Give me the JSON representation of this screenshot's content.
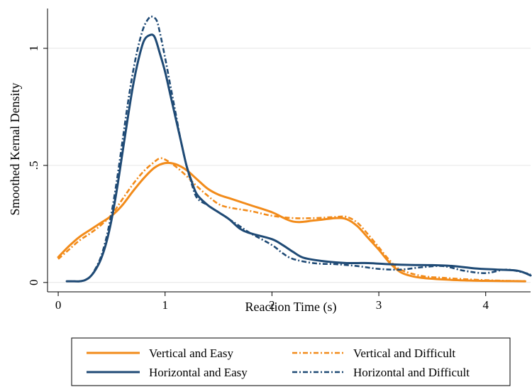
{
  "chart_data": {
    "type": "line",
    "xlabel": "Reaction Time (s)",
    "ylabel": "Smoothed Kernal Density",
    "xlim": [
      -0.1,
      4.42
    ],
    "ylim": [
      -0.04,
      1.17
    ],
    "xticks": [
      {
        "value": 0,
        "label": "0"
      },
      {
        "value": 1,
        "label": "1"
      },
      {
        "value": 2,
        "label": "2"
      },
      {
        "value": 3,
        "label": "3"
      },
      {
        "value": 4,
        "label": "4"
      }
    ],
    "yticks": [
      {
        "value": 0,
        "label": "0"
      },
      {
        "value": 0.5,
        "label": ".5"
      },
      {
        "value": 1,
        "label": "1"
      }
    ],
    "grid": true,
    "legend": "bottom",
    "series": [
      {
        "name": "Vertical and Easy",
        "color": "#f28b1a",
        "dash": "solid",
        "x": [
          0.0,
          0.1,
          0.2,
          0.3,
          0.4,
          0.5,
          0.6,
          0.7,
          0.8,
          0.9,
          1.0,
          1.1,
          1.2,
          1.3,
          1.4,
          1.5,
          1.6,
          1.8,
          2.0,
          2.2,
          2.4,
          2.6,
          2.7,
          2.8,
          2.9,
          3.0,
          3.1,
          3.2,
          3.3,
          3.4,
          3.6,
          3.8,
          4.0,
          4.2,
          4.37
        ],
        "y": [
          0.108,
          0.155,
          0.195,
          0.225,
          0.255,
          0.285,
          0.33,
          0.39,
          0.445,
          0.49,
          0.51,
          0.505,
          0.48,
          0.44,
          0.4,
          0.375,
          0.36,
          0.33,
          0.3,
          0.26,
          0.265,
          0.275,
          0.27,
          0.24,
          0.19,
          0.14,
          0.085,
          0.045,
          0.028,
          0.02,
          0.013,
          0.009,
          0.007,
          0.006,
          0.005
        ]
      },
      {
        "name": "Vertical and Difficult",
        "color": "#f28b1a",
        "dash": "dashdot",
        "x": [
          0.0,
          0.1,
          0.2,
          0.3,
          0.4,
          0.5,
          0.6,
          0.7,
          0.8,
          0.9,
          0.95,
          1.0,
          1.1,
          1.2,
          1.3,
          1.4,
          1.5,
          1.6,
          1.8,
          2.0,
          2.2,
          2.4,
          2.6,
          2.7,
          2.8,
          2.9,
          3.0,
          3.1,
          3.2,
          3.4,
          3.6,
          3.8,
          4.0,
          4.2,
          4.37
        ],
        "y": [
          0.1,
          0.14,
          0.18,
          0.21,
          0.245,
          0.29,
          0.355,
          0.42,
          0.475,
          0.515,
          0.53,
          0.525,
          0.495,
          0.455,
          0.41,
          0.37,
          0.335,
          0.32,
          0.305,
          0.285,
          0.275,
          0.275,
          0.28,
          0.28,
          0.255,
          0.205,
          0.15,
          0.095,
          0.055,
          0.028,
          0.02,
          0.014,
          0.01,
          0.007,
          0.006
        ]
      },
      {
        "name": "Horizontal and Easy",
        "color": "#1f4a75",
        "dash": "solid",
        "x": [
          0.08,
          0.15,
          0.2,
          0.25,
          0.3,
          0.35,
          0.4,
          0.45,
          0.5,
          0.55,
          0.6,
          0.65,
          0.7,
          0.75,
          0.8,
          0.85,
          0.9,
          0.95,
          1.0,
          1.05,
          1.1,
          1.15,
          1.2,
          1.25,
          1.3,
          1.4,
          1.5,
          1.6,
          1.7,
          1.8,
          2.0,
          2.1,
          2.2,
          2.3,
          2.5,
          2.7,
          2.9,
          3.1,
          3.3,
          3.5,
          3.7,
          3.9,
          4.1,
          4.3,
          4.42
        ],
        "y": [
          0.005,
          0.005,
          0.005,
          0.01,
          0.025,
          0.055,
          0.1,
          0.17,
          0.27,
          0.4,
          0.55,
          0.7,
          0.84,
          0.95,
          1.03,
          1.055,
          1.05,
          0.98,
          0.9,
          0.8,
          0.7,
          0.6,
          0.5,
          0.43,
          0.375,
          0.33,
          0.3,
          0.27,
          0.23,
          0.21,
          0.185,
          0.16,
          0.13,
          0.105,
          0.09,
          0.083,
          0.083,
          0.078,
          0.075,
          0.074,
          0.07,
          0.06,
          0.055,
          0.05,
          0.03
        ]
      },
      {
        "name": "Horizontal and Difficult",
        "color": "#1f4a75",
        "dash": "dashdot",
        "x": [
          0.08,
          0.15,
          0.2,
          0.25,
          0.3,
          0.35,
          0.4,
          0.45,
          0.5,
          0.55,
          0.6,
          0.65,
          0.7,
          0.75,
          0.8,
          0.85,
          0.88,
          0.92,
          0.95,
          1.0,
          1.05,
          1.1,
          1.15,
          1.2,
          1.25,
          1.3,
          1.4,
          1.5,
          1.6,
          1.7,
          1.8,
          2.0,
          2.1,
          2.2,
          2.4,
          2.6,
          2.8,
          3.0,
          3.2,
          3.4,
          3.6,
          3.8,
          4.0,
          4.2,
          4.42
        ],
        "y": [
          0.005,
          0.005,
          0.005,
          0.01,
          0.025,
          0.06,
          0.11,
          0.19,
          0.3,
          0.44,
          0.6,
          0.76,
          0.9,
          1.01,
          1.09,
          1.13,
          1.135,
          1.12,
          1.07,
          0.96,
          0.84,
          0.72,
          0.6,
          0.5,
          0.42,
          0.36,
          0.33,
          0.3,
          0.27,
          0.24,
          0.21,
          0.16,
          0.125,
          0.1,
          0.082,
          0.078,
          0.07,
          0.058,
          0.055,
          0.065,
          0.07,
          0.05,
          0.04,
          0.055,
          0.035
        ]
      }
    ]
  }
}
